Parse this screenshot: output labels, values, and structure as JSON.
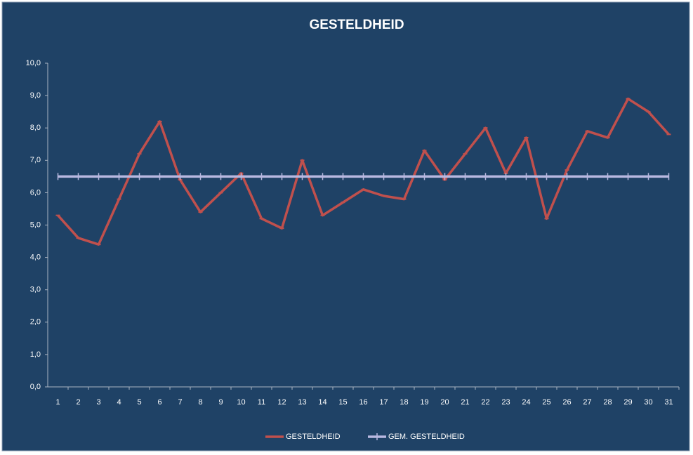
{
  "chart_data": {
    "type": "line",
    "title": "GESTELDHEID",
    "categories": [
      "1",
      "2",
      "3",
      "4",
      "5",
      "6",
      "7",
      "8",
      "9",
      "10",
      "11",
      "12",
      "13",
      "14",
      "15",
      "16",
      "17",
      "18",
      "19",
      "20",
      "21",
      "22",
      "23",
      "24",
      "25",
      "26",
      "27",
      "28",
      "29",
      "30",
      "31"
    ],
    "series": [
      {
        "name": "GESTELDHEID",
        "color": "#c0504d",
        "values": [
          5.3,
          4.6,
          4.4,
          5.8,
          7.2,
          8.2,
          6.4,
          5.4,
          6.0,
          6.6,
          5.2,
          4.9,
          7.0,
          5.3,
          5.7,
          6.1,
          5.9,
          5.8,
          7.3,
          6.4,
          7.2,
          8.0,
          6.6,
          7.7,
          5.2,
          6.7,
          7.9,
          7.7,
          8.9,
          8.5,
          7.8
        ]
      },
      {
        "name": "GEM. GESTELDHEID",
        "color": "#b8b8e0",
        "values": [
          6.5,
          6.5,
          6.5,
          6.5,
          6.5,
          6.5,
          6.5,
          6.5,
          6.5,
          6.5,
          6.5,
          6.5,
          6.5,
          6.5,
          6.5,
          6.5,
          6.5,
          6.5,
          6.5,
          6.5,
          6.5,
          6.5,
          6.5,
          6.5,
          6.5,
          6.5,
          6.5,
          6.5,
          6.5,
          6.5,
          6.5
        ]
      }
    ],
    "ylim": [
      0,
      10
    ],
    "yticks": [
      {
        "value": 0,
        "label": "0,0"
      },
      {
        "value": 1,
        "label": "1,0"
      },
      {
        "value": 2,
        "label": "2,0"
      },
      {
        "value": 3,
        "label": "3,0"
      },
      {
        "value": 4,
        "label": "4,0"
      },
      {
        "value": 5,
        "label": "5,0"
      },
      {
        "value": 6,
        "label": "6,0"
      },
      {
        "value": 7,
        "label": "7,0"
      },
      {
        "value": 8,
        "label": "8,0"
      },
      {
        "value": 9,
        "label": "9,0"
      },
      {
        "value": 10,
        "label": "10,0"
      }
    ],
    "legend": "bottom"
  }
}
